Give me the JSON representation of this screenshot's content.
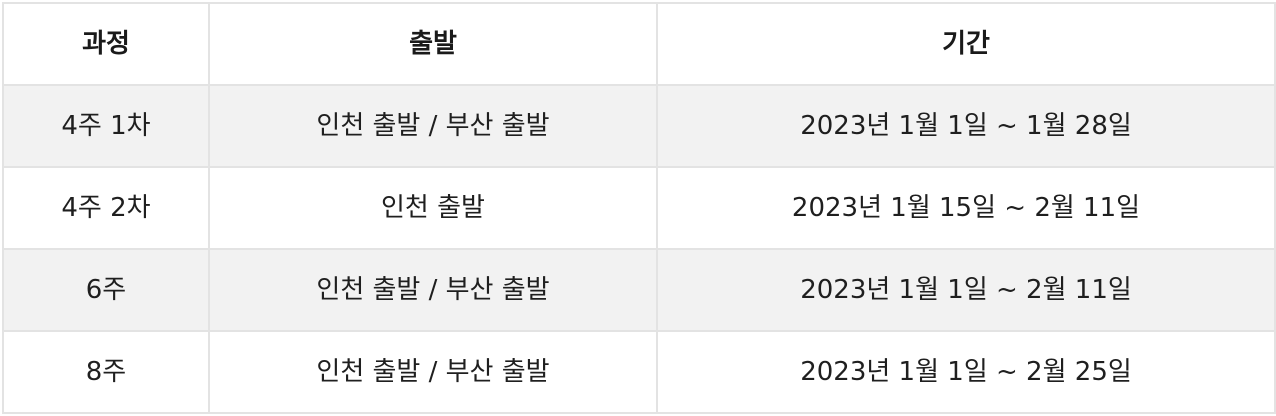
{
  "table": {
    "headers": [
      "과정",
      "출발",
      "기간"
    ],
    "rows": [
      {
        "course": "4주 1차",
        "departure": "인천 출발 / 부산 출발",
        "period": "2023년 1월 1일 ~ 1월 28일"
      },
      {
        "course": "4주 2차",
        "departure": "인천 출발",
        "period": "2023년 1월 15일 ~ 2월 11일"
      },
      {
        "course": "6주",
        "departure": "인천 출발 / 부산 출발",
        "period": "2023년 1월 1일 ~ 2월 11일"
      },
      {
        "course": "8주",
        "departure": "인천 출발 / 부산 출발",
        "period": "2023년 1월 1일 ~ 2월 25일"
      }
    ]
  },
  "colors": {
    "border": "#e3e3e3",
    "shaded_row": "#f2f2f2",
    "text": "#1f1f1f"
  }
}
